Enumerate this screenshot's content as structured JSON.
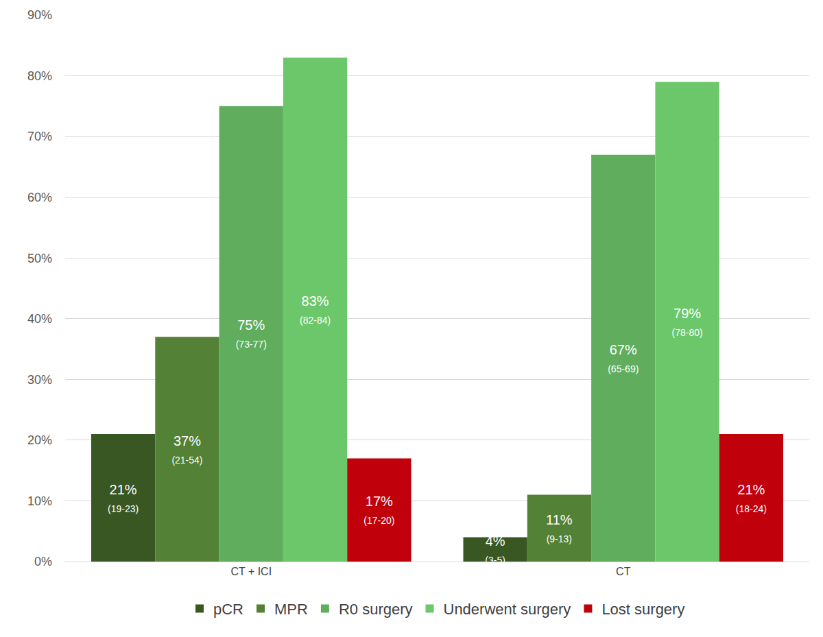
{
  "chart_data": {
    "type": "bar",
    "categories": [
      "CT + ICI",
      "CT"
    ],
    "series": [
      {
        "name": "pCR",
        "color": "#385723",
        "values": [
          21,
          4
        ],
        "value_labels": [
          "21%",
          "4%"
        ],
        "interval_labels": [
          "(19-23)",
          "(3-5)"
        ]
      },
      {
        "name": "MPR",
        "color": "#538135",
        "values": [
          37,
          11
        ],
        "value_labels": [
          "37%",
          "11%"
        ],
        "interval_labels": [
          "(21-54)",
          "(9-13)"
        ]
      },
      {
        "name": "R0 surgery",
        "color": "#60ad5e",
        "values": [
          75,
          67
        ],
        "value_labels": [
          "75%",
          "67%"
        ],
        "interval_labels": [
          "(73-77)",
          "(65-69)"
        ]
      },
      {
        "name": "Underwent surgery",
        "color": "#6cc76a",
        "values": [
          83,
          79
        ],
        "value_labels": [
          "83%",
          "79%"
        ],
        "interval_labels": [
          "(82-84)",
          "(78-80)"
        ]
      },
      {
        "name": "Lost surgery",
        "color": "#c0000b",
        "values": [
          17,
          21
        ],
        "value_labels": [
          "17%",
          "21%"
        ],
        "interval_labels": [
          "(17-20)",
          "(18-24)"
        ]
      }
    ],
    "ylim": [
      0,
      90
    ],
    "yticks": [
      {
        "value": 0,
        "label": "0%"
      },
      {
        "value": 10,
        "label": "10%"
      },
      {
        "value": 20,
        "label": "20%"
      },
      {
        "value": 30,
        "label": "30%"
      },
      {
        "value": 40,
        "label": "40%"
      },
      {
        "value": 50,
        "label": "50%"
      },
      {
        "value": 60,
        "label": "60%"
      },
      {
        "value": 70,
        "label": "70%"
      },
      {
        "value": 80,
        "label": "80%"
      },
      {
        "value": 90,
        "label": "90%"
      }
    ],
    "grid": true,
    "legend": "bottom",
    "data_labels": true
  }
}
